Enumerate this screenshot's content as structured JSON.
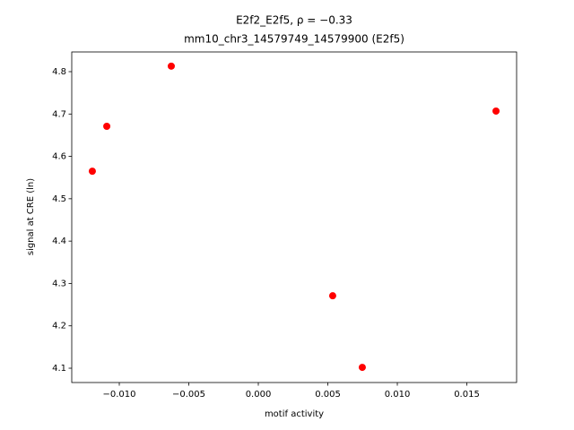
{
  "chart_data": {
    "type": "scatter",
    "title": "E2f2_E2f5, ρ = −0.33",
    "subtitle": "mm10_chr3_14579749_14579900 (E2f5)",
    "x_label": "motif activity",
    "y_label": "signal at CRE (ln)",
    "color": "#ff0000",
    "x": [
      -0.01194,
      -0.0109,
      -0.00626,
      0.00535,
      0.00748,
      0.0171
    ],
    "y": [
      4.565,
      4.671,
      4.813,
      4.271,
      4.102,
      4.707
    ],
    "xlim": [
      -0.01342,
      0.01858
    ],
    "ylim": [
      4.0662,
      4.8465
    ],
    "xticks": [
      {
        "value": -0.01,
        "label": "−0.010"
      },
      {
        "value": -0.005,
        "label": "−0.005"
      },
      {
        "value": 0,
        "label": "0.000"
      },
      {
        "value": 0.005,
        "label": "0.005"
      },
      {
        "value": 0.01,
        "label": "0.010"
      },
      {
        "value": 0.015,
        "label": "0.015"
      }
    ],
    "yticks": [
      4.1,
      4.2,
      4.3,
      4.4,
      4.5,
      4.6,
      4.7,
      4.8
    ],
    "grid": false
  }
}
